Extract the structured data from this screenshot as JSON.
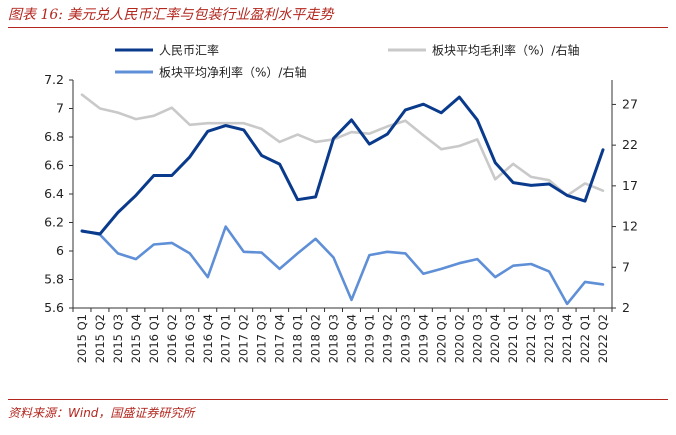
{
  "figure": {
    "title": "图表 16: 美元兑人民币汇率与包装行业盈利水平走势",
    "source": "资料来源：Wind，国盛证券研究所"
  },
  "chart_data": {
    "type": "line",
    "categories": [
      "2015 Q1",
      "2015 Q2",
      "2015 Q3",
      "2015 Q4",
      "2016 Q1",
      "2016 Q2",
      "2016 Q3",
      "2016 Q4",
      "2017 Q1",
      "2017 Q2",
      "2017 Q3",
      "2017 Q4",
      "2018 Q1",
      "2018 Q2",
      "2018 Q3",
      "2018 Q4",
      "2019 Q1",
      "2019 Q2",
      "2019 Q3",
      "2019 Q4",
      "2020 Q1",
      "2020 Q2",
      "2020 Q3",
      "2020 Q4",
      "2021 Q1",
      "2021 Q2",
      "2021 Q3",
      "2021 Q4",
      "2022 Q1",
      "2022 Q2"
    ],
    "left_axis": {
      "ylim": [
        5.6,
        7.2
      ],
      "ticks": [
        "5.6",
        "5.8",
        "6",
        "6.2",
        "6.4",
        "6.6",
        "6.8",
        "7",
        "7.2"
      ]
    },
    "right_axis": {
      "ylim": [
        2,
        30
      ],
      "ticks": [
        "2",
        "7",
        "12",
        "17",
        "22",
        "27"
      ]
    },
    "legend_placement": "top",
    "grid": false,
    "series": [
      {
        "name": "人民币汇率",
        "axis": "left",
        "color": "#0a3a8c",
        "values": [
          6.14,
          6.12,
          6.27,
          6.39,
          6.53,
          6.53,
          6.66,
          6.84,
          6.88,
          6.85,
          6.67,
          6.61,
          6.36,
          6.38,
          6.79,
          6.92,
          6.75,
          6.82,
          6.99,
          7.03,
          6.97,
          7.08,
          6.92,
          6.62,
          6.48,
          6.46,
          6.47,
          6.39,
          6.35,
          6.71
        ]
      },
      {
        "name": "板块平均毛利率（%）/右轴",
        "axis": "right",
        "color": "#c9c9c9",
        "values": [
          28.2,
          26.5,
          26.0,
          25.2,
          25.6,
          26.6,
          24.5,
          24.7,
          24.7,
          24.7,
          24.0,
          22.4,
          23.3,
          22.4,
          22.7,
          23.6,
          23.4,
          24.3,
          25.0,
          23.2,
          21.5,
          21.9,
          22.7,
          17.8,
          19.7,
          18.1,
          17.7,
          15.8,
          17.3,
          16.4
        ]
      },
      {
        "name": "板块平均净利率（%）/右轴",
        "axis": "right",
        "color": "#5f8fd6",
        "values": [
          11.5,
          11.0,
          8.7,
          8.0,
          9.8,
          10.0,
          8.7,
          5.8,
          12.0,
          8.9,
          8.8,
          6.8,
          8.7,
          10.5,
          8.2,
          3.0,
          8.5,
          8.9,
          8.7,
          6.2,
          6.8,
          7.5,
          8.0,
          5.8,
          7.2,
          7.4,
          6.5,
          2.5,
          5.2,
          4.9
        ]
      }
    ]
  }
}
